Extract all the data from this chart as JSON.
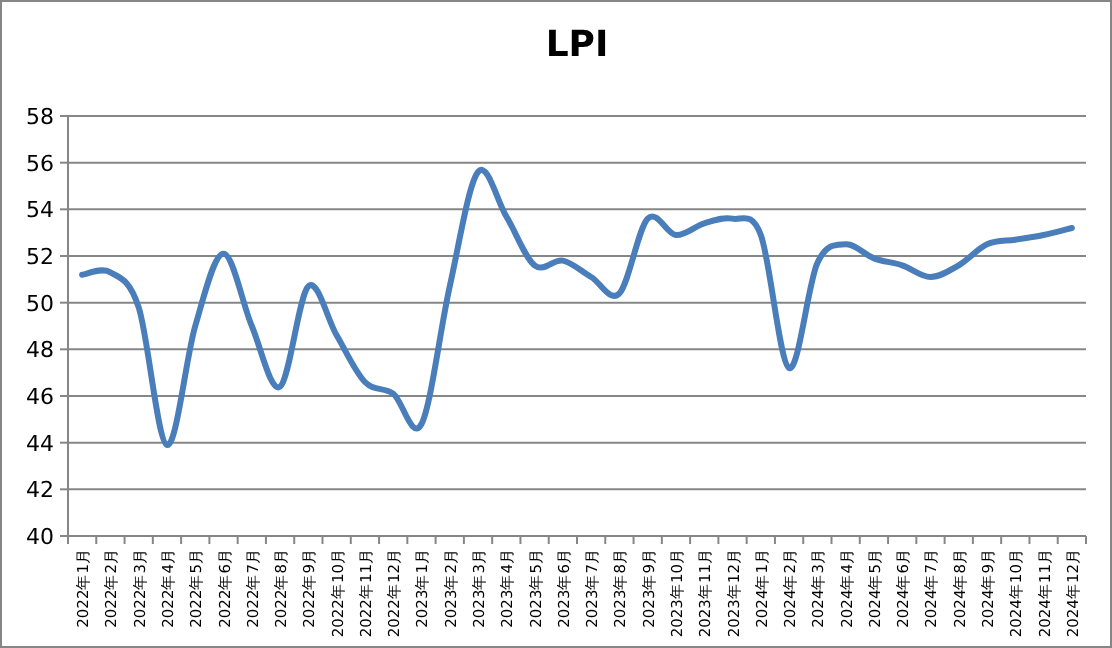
{
  "chart_data": {
    "type": "line",
    "title": "LPI",
    "categories": [
      "2022年1月",
      "2022年2月",
      "2022年3月",
      "2022年4月",
      "2022年5月",
      "2022年6月",
      "2022年7月",
      "2022年8月",
      "2022年9月",
      "2022年10月",
      "2022年11月",
      "2022年12月",
      "2023年1月",
      "2023年2月",
      "2023年3月",
      "2023年4月",
      "2023年5月",
      "2023年6月",
      "2023年7月",
      "2023年8月",
      "2023年9月",
      "2023年10月",
      "2023年11月",
      "2023年12月",
      "2024年1月",
      "2024年2月",
      "2024年3月",
      "2024年4月",
      "2024年5月",
      "2024年6月",
      "2024年7月",
      "2024年8月",
      "2024年9月",
      "2024年10月",
      "2024年11月",
      "2024年12月"
    ],
    "values": [
      51.2,
      51.3,
      49.8,
      43.9,
      49.0,
      52.1,
      49.0,
      46.4,
      50.7,
      48.6,
      46.6,
      46.1,
      44.8,
      50.7,
      55.6,
      53.7,
      51.6,
      51.8,
      51.1,
      50.4,
      53.6,
      52.9,
      53.4,
      53.6,
      52.9,
      47.2,
      51.7,
      52.5,
      51.9,
      51.6,
      51.1,
      51.6,
      52.5,
      52.7,
      52.9,
      53.2
    ],
    "color": "#4a7ebb",
    "ylim": [
      40,
      58
    ],
    "yticks": [
      40,
      42,
      44,
      46,
      48,
      50,
      52,
      54,
      56,
      58
    ],
    "grid": "y"
  }
}
